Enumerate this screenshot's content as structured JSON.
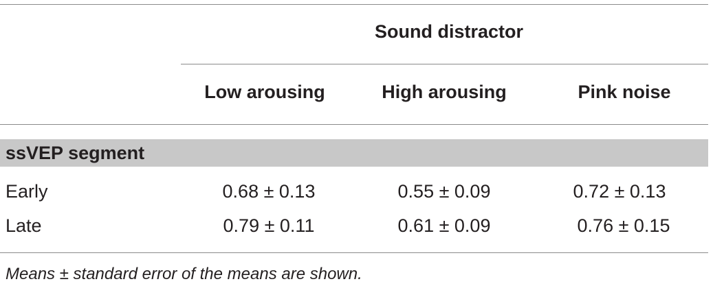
{
  "table": {
    "group_header": "Sound distractor",
    "columns": [
      "Low arousing",
      "High arousing",
      "Pink noise"
    ],
    "section_label": "ssVEP segment",
    "rows": [
      {
        "label": "Early",
        "values": [
          "0.68 ± 0.13",
          "0.55 ± 0.09",
          "0.72 ± 0.13"
        ]
      },
      {
        "label": "Late",
        "values": [
          "0.79 ± 0.11",
          "0.61 ± 0.09",
          "0.76 ± 0.15"
        ]
      }
    ],
    "section_band_color": "#c8c8c8"
  },
  "footnote": "Means ± standard error of the means are shown."
}
